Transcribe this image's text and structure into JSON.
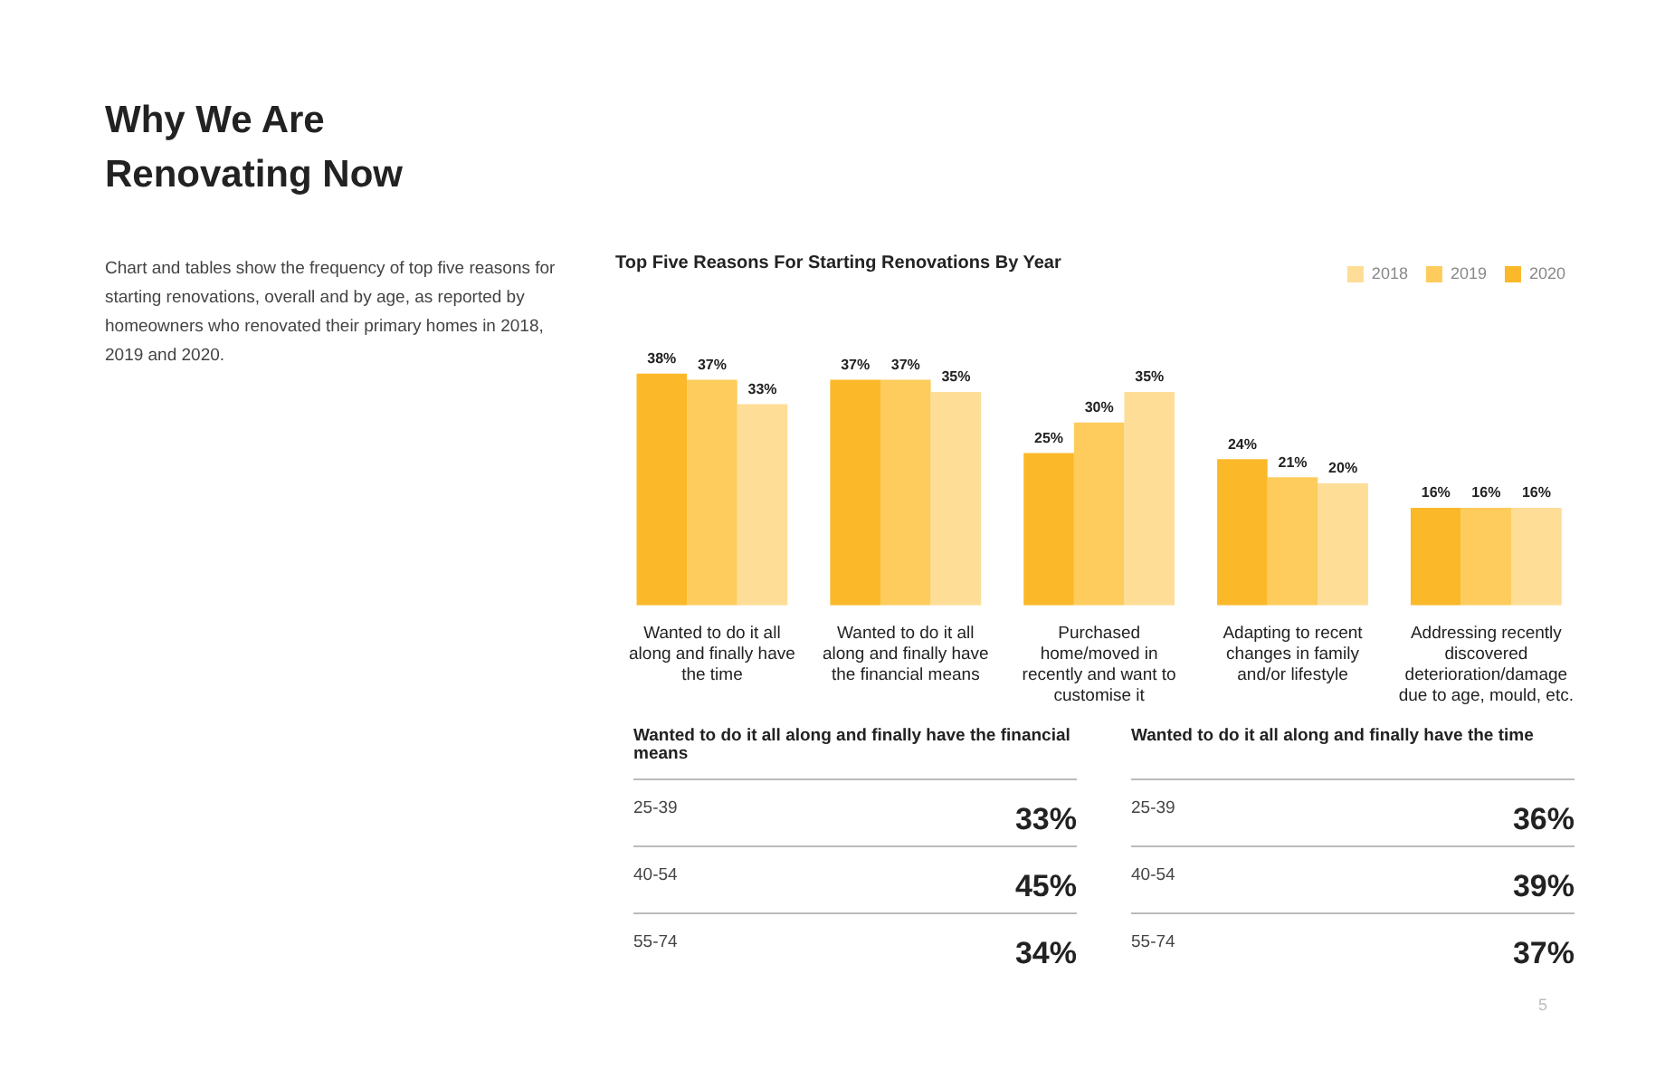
{
  "chart_data": {
    "type": "bar",
    "title": "Why We Are Renovating Now",
    "subtitle": "Top Five Reasons For Starting Renovations By Year",
    "categories": [
      "Wanted to do it all along and finally have the time",
      "Wanted to do it all along and finally have the financial means",
      "Purchased home/moved in recently and want to customise it",
      "Adapting to recent changes in family and/or lifestyle",
      "Addressing recently discovered deterioration/damage due to age, mould, etc."
    ],
    "series": [
      {
        "name": "2020",
        "color": "#fbb829",
        "values": [
          38,
          37,
          25,
          24,
          16
        ],
        "value_labels": [
          "38%",
          "37%",
          "25%",
          "24%",
          "16%"
        ]
      },
      {
        "name": "2019",
        "color": "#fdcc5c",
        "values": [
          37,
          37,
          30,
          21,
          16
        ],
        "value_labels": [
          "37%",
          "37%",
          "30%",
          "21%",
          "16%"
        ]
      },
      {
        "name": "2018",
        "color": "#fedd96",
        "values": [
          33,
          35,
          35,
          20,
          16
        ],
        "value_labels": [
          "33%",
          "35%",
          "35%",
          "20%",
          "16%"
        ]
      }
    ],
    "legend": "top right",
    "grid": false,
    "tick_labels": "x",
    "annotations": [
      "Chart and tables show the frequency of top five reasons for starting renovations, overall and by age, as reported by homeowners who renovated their primary homes in 2018, 2019 and 2020.",
      "Wanted to do it all along and finally have the financial means",
      "25-39",
      "33%",
      "40-54",
      "45%",
      "55-74",
      "34%",
      "Wanted to do it all along and finally have the time",
      "25-39",
      "36%",
      "40-54",
      "39%",
      "55-74",
      "37%",
      "5"
    ]
  }
}
